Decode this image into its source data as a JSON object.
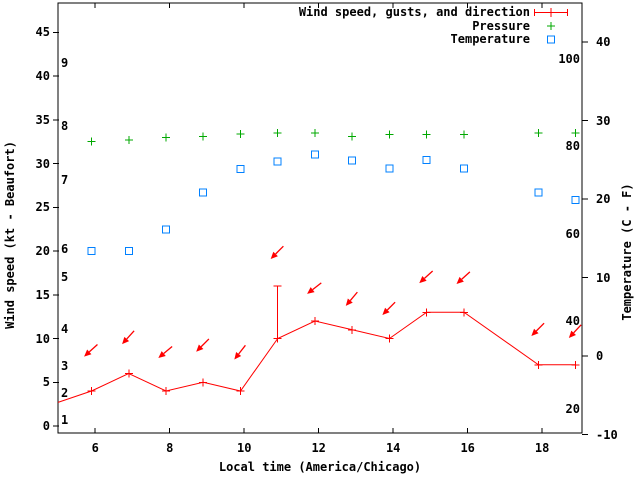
{
  "figure": {
    "background": "#ffffff",
    "foreground": "#000000"
  },
  "colors": {
    "wind": "#ff0000",
    "pressure": "#00a800",
    "temperature": "#0080ff"
  },
  "axes": {
    "xlabel": "Local time (America/Chicago)",
    "ylabel": "Wind speed (kt - Beaufort)",
    "y2label": "Temperature (C - F)",
    "x_ticks": [
      6,
      8,
      10,
      12,
      14,
      16,
      18
    ],
    "y_ticks_kt": [
      0,
      5,
      10,
      15,
      20,
      25,
      30,
      35,
      40,
      45
    ],
    "beaufort_ticks": [
      {
        "b": "1",
        "kt": 0.7
      },
      {
        "b": "2",
        "kt": 3.8
      },
      {
        "b": "3",
        "kt": 6.9
      },
      {
        "b": "4",
        "kt": 11.1
      },
      {
        "b": "5",
        "kt": 17.0
      },
      {
        "b": "6",
        "kt": 20.2
      },
      {
        "b": "7",
        "kt": 28.1
      },
      {
        "b": "8",
        "kt": 34.3
      },
      {
        "b": "9",
        "kt": 41.5
      }
    ],
    "y2_ticks_c": [
      -10,
      0,
      10,
      20,
      30,
      40
    ],
    "y2_ticks_f": [
      {
        "f": "20",
        "c": -6.7
      },
      {
        "f": "40",
        "c": 4.4
      },
      {
        "f": "60",
        "c": 15.6
      },
      {
        "f": "80",
        "c": 26.7
      },
      {
        "f": "100",
        "c": 37.8
      }
    ]
  },
  "legend": [
    {
      "label": "Wind speed, gusts, and direction",
      "series": "wind"
    },
    {
      "label": "Pressure",
      "series": "pressure"
    },
    {
      "label": "Temperature",
      "series": "temperature"
    }
  ],
  "chart_data": {
    "type": "line",
    "title": "",
    "x_hours": [
      5.9,
      6.9,
      7.9,
      8.9,
      9.9,
      10.9,
      11.9,
      12.9,
      13.9,
      14.9,
      15.9,
      17.9,
      18.9
    ],
    "xlim": [
      5,
      19.07
    ],
    "ylim_left_kt": [
      -1,
      48.3
    ],
    "ylim_right_c": [
      -10,
      45
    ],
    "grid": false,
    "legend_position": "top-right-inside",
    "series": [
      {
        "name": "Wind speed, gusts, and direction",
        "axis": "left",
        "unit": "kt",
        "marker": "plus",
        "color_key": "wind",
        "values": [
          4,
          6,
          4,
          5,
          4,
          10,
          12,
          11,
          10,
          13,
          13,
          7,
          7
        ],
        "line_entry_at_left_edge": {
          "t": 5.0,
          "kt": 2.7
        },
        "gust_error_bars": [
          {
            "t": 10.9,
            "low_kt": 10,
            "high_kt": 16
          }
        ],
        "direction_arrows": [
          {
            "t": 5.9,
            "kt": 8.7,
            "angle_deg": 138
          },
          {
            "t": 6.9,
            "kt": 10.2,
            "angle_deg": 132
          },
          {
            "t": 7.9,
            "kt": 8.5,
            "angle_deg": 140
          },
          {
            "t": 8.9,
            "kt": 9.3,
            "angle_deg": 135
          },
          {
            "t": 9.9,
            "kt": 8.5,
            "angle_deg": 128
          },
          {
            "t": 10.9,
            "kt": 19.9,
            "angle_deg": 135
          },
          {
            "t": 11.9,
            "kt": 15.8,
            "angle_deg": 142
          },
          {
            "t": 12.9,
            "kt": 14.6,
            "angle_deg": 130
          },
          {
            "t": 13.9,
            "kt": 13.5,
            "angle_deg": 135
          },
          {
            "t": 14.9,
            "kt": 17.1,
            "angle_deg": 138
          },
          {
            "t": 15.9,
            "kt": 17.0,
            "angle_deg": 138
          },
          {
            "t": 17.9,
            "kt": 11.1,
            "angle_deg": 135
          },
          {
            "t": 18.9,
            "kt": 10.9,
            "angle_deg": 133
          }
        ]
      },
      {
        "name": "Pressure",
        "axis": "left-unlabeled-scale",
        "marker": "plus",
        "color_key": "pressure",
        "values_on_left_axis": [
          32.5,
          32.7,
          33.0,
          33.1,
          33.4,
          33.5,
          33.5,
          33.1,
          33.3,
          33.3,
          33.3,
          33.5,
          33.5
        ]
      },
      {
        "name": "Temperature",
        "axis": "right",
        "unit": "C",
        "marker": "open-square",
        "color_key": "temperature",
        "values_c": [
          13.4,
          13.4,
          16.1,
          20.8,
          23.8,
          24.8,
          25.7,
          24.9,
          23.9,
          25.0,
          23.9,
          20.8,
          19.9
        ]
      }
    ]
  }
}
